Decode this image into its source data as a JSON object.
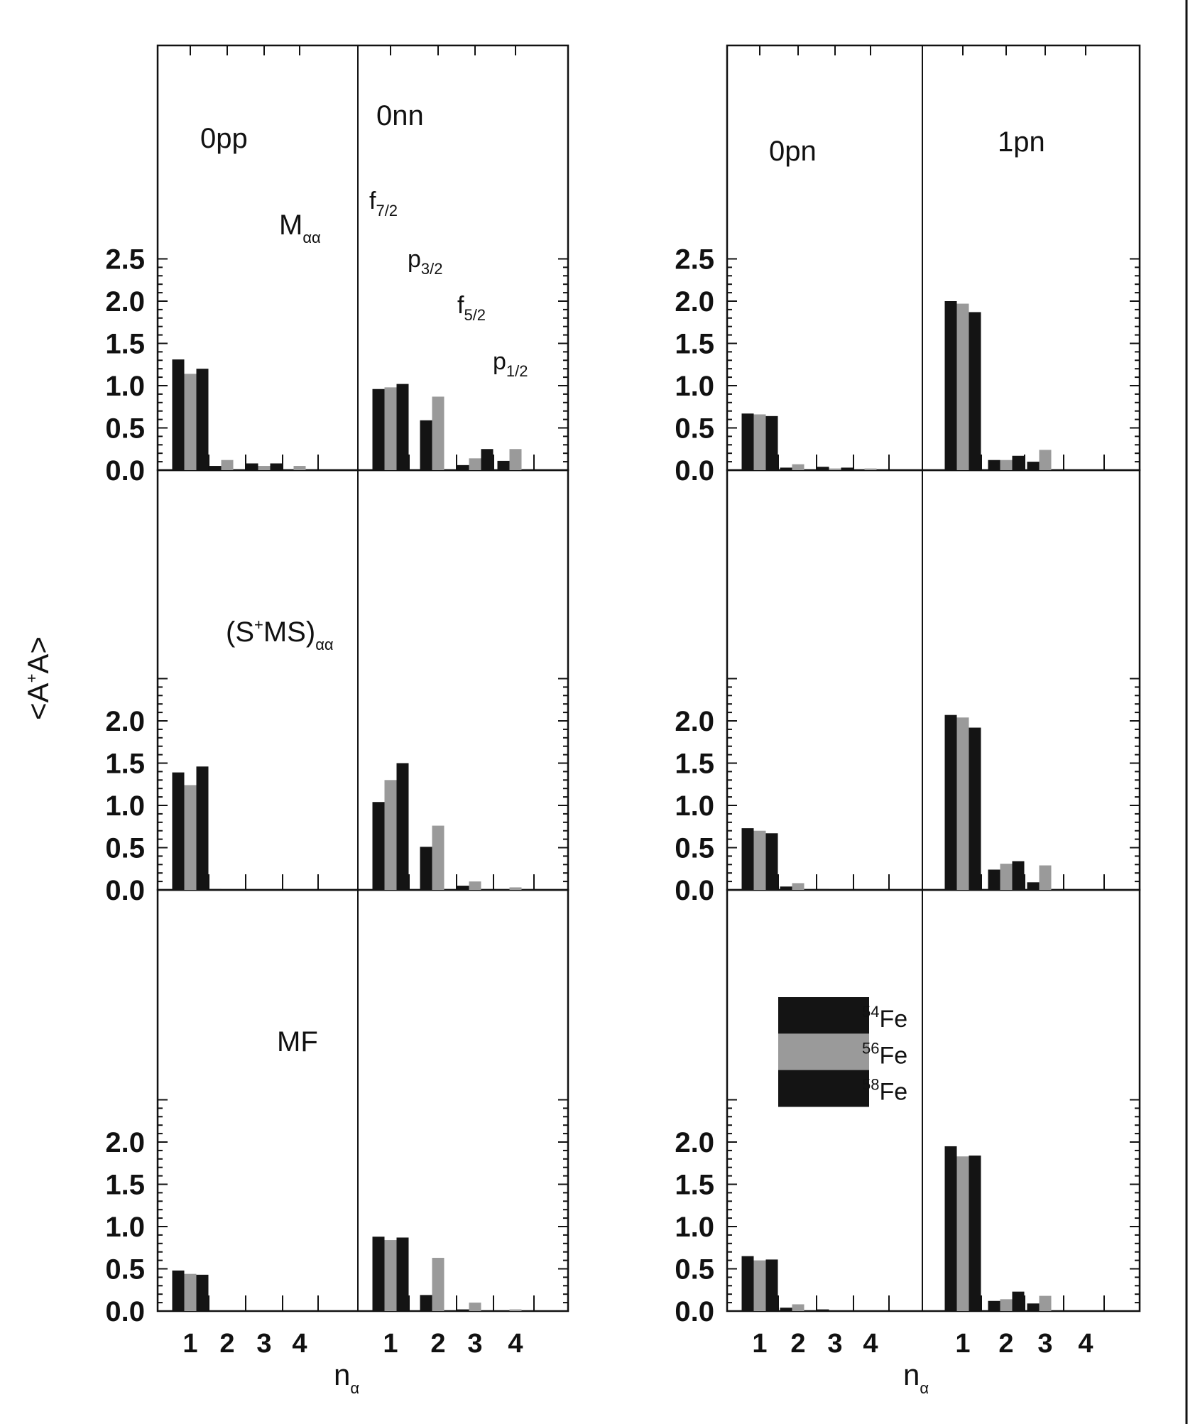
{
  "chart_data": {
    "type": "bar",
    "ylabel": "<A<sup>+</sup>A>",
    "ylabel_parts": {
      "base_left": "<A",
      "sup": "+",
      "base_right": "A>"
    },
    "xlabel_parts": {
      "base": "n",
      "sub": "α"
    },
    "y_ticks": [
      "0.0",
      "0.5",
      "1.0",
      "1.5",
      "2.0",
      "2.5"
    ],
    "ylim": [
      0,
      2.5
    ],
    "legend": [
      {
        "name": "54Fe",
        "mass": "54",
        "symbol": "Fe",
        "color": "#141414"
      },
      {
        "name": "56Fe",
        "mass": "56",
        "symbol": "Fe",
        "color": "#9a9a9a"
      },
      {
        "name": "58Fe",
        "mass": "58",
        "symbol": "Fe",
        "color": "#141414"
      }
    ],
    "columns": [
      {
        "sub_panels": [
          {
            "label": "0pp",
            "x_ticks": [
              "1",
              "2",
              "3",
              "4"
            ]
          },
          {
            "label": "0nn",
            "x_ticks": [
              "1",
              "2",
              "3",
              "4"
            ]
          }
        ]
      },
      {
        "sub_panels": [
          {
            "label": "0pn",
            "x_ticks": [
              "1",
              "2",
              "3",
              "4"
            ]
          },
          {
            "label": "1pn",
            "x_ticks": [
              "1",
              "2",
              "3",
              "4"
            ]
          }
        ]
      }
    ],
    "rows": [
      {
        "label_base": "M",
        "label_sub": "αα",
        "panels": [
          {
            "label": "0pp",
            "values": [
              [
                1.31,
                1.14,
                1.2
              ],
              [
                0.05,
                0.12,
                0.0
              ],
              [
                0.08,
                0.05,
                0.08
              ],
              [
                0.0,
                0.05,
                0.0
              ]
            ]
          },
          {
            "label": "0nn",
            "values": [
              [
                0.96,
                0.98,
                1.02
              ],
              [
                0.59,
                0.87,
                0.0
              ],
              [
                0.06,
                0.14,
                0.25
              ],
              [
                0.11,
                0.25,
                0.0
              ]
            ]
          },
          {
            "label": "0pn",
            "values": [
              [
                0.67,
                0.66,
                0.64
              ],
              [
                0.03,
                0.07,
                0.0
              ],
              [
                0.04,
                0.02,
                0.03
              ],
              [
                0.0,
                0.02,
                0.0
              ]
            ]
          },
          {
            "label": "1pn",
            "values": [
              [
                2.0,
                1.97,
                1.87
              ],
              [
                0.12,
                0.12,
                0.17
              ],
              [
                0.1,
                0.24,
                0.0
              ],
              [
                0.0,
                0.0,
                0.0
              ]
            ]
          }
        ]
      },
      {
        "label_base": "(S",
        "label_sup": "+",
        "label_mid": "MS)",
        "label_sub": "αα",
        "panels": [
          {
            "label": "0pp",
            "values": [
              [
                1.39,
                1.24,
                1.46
              ],
              [
                0.01,
                0.0,
                0.0
              ],
              [
                0.0,
                0.0,
                0.0
              ],
              [
                0.0,
                0.0,
                0.0
              ]
            ]
          },
          {
            "label": "0nn",
            "values": [
              [
                1.04,
                1.3,
                1.5
              ],
              [
                0.51,
                0.76,
                0.0
              ],
              [
                0.05,
                0.1,
                0.0
              ],
              [
                0.0,
                0.03,
                0.0
              ]
            ]
          },
          {
            "label": "0pn",
            "values": [
              [
                0.73,
                0.7,
                0.67
              ],
              [
                0.04,
                0.08,
                0.0
              ],
              [
                0.01,
                0.0,
                0.0
              ],
              [
                0.0,
                0.0,
                0.0
              ]
            ]
          },
          {
            "label": "1pn",
            "values": [
              [
                2.07,
                2.04,
                1.92
              ],
              [
                0.24,
                0.31,
                0.34
              ],
              [
                0.09,
                0.29,
                0.0
              ],
              [
                0.0,
                0.0,
                0.0
              ]
            ]
          }
        ]
      },
      {
        "label_base": "MF",
        "panels": [
          {
            "label": "0pp",
            "values": [
              [
                0.48,
                0.44,
                0.43
              ],
              [
                0.0,
                0.0,
                0.0
              ],
              [
                0.0,
                0.0,
                0.0
              ],
              [
                0.0,
                0.0,
                0.0
              ]
            ]
          },
          {
            "label": "0nn",
            "values": [
              [
                0.88,
                0.84,
                0.87
              ],
              [
                0.19,
                0.63,
                0.0
              ],
              [
                0.02,
                0.1,
                0.0
              ],
              [
                0.0,
                0.02,
                0.0
              ]
            ]
          },
          {
            "label": "0pn",
            "values": [
              [
                0.65,
                0.6,
                0.61
              ],
              [
                0.04,
                0.08,
                0.0
              ],
              [
                0.02,
                0.0,
                0.0
              ],
              [
                0.0,
                0.0,
                0.0
              ]
            ]
          },
          {
            "label": "1pn",
            "values": [
              [
                1.95,
                1.83,
                1.84
              ],
              [
                0.12,
                0.14,
                0.23
              ],
              [
                0.09,
                0.18,
                0.0
              ],
              [
                0.0,
                0.0,
                0.0
              ]
            ]
          }
        ]
      }
    ],
    "orbital_labels": [
      {
        "base": "f",
        "sub": "7/2"
      },
      {
        "base": "p",
        "sub": "3/2"
      },
      {
        "base": "f",
        "sub": "5/2"
      },
      {
        "base": "p",
        "sub": "1/2"
      }
    ]
  }
}
